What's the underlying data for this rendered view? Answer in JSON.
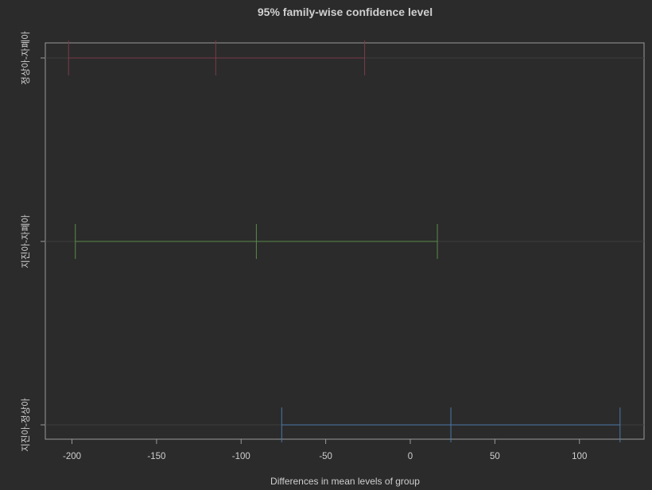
{
  "chart_data": {
    "type": "errorbar",
    "title": "95% family-wise confidence level",
    "xlabel": "Differences in mean levels of group",
    "ylabel": "",
    "xlim": [
      -200,
      125
    ],
    "xticks": [
      -200,
      -150,
      -100,
      -50,
      0,
      50,
      100
    ],
    "xtick_labels": [
      "-200",
      "-150",
      "-100",
      "-50",
      "0",
      "50",
      "100"
    ],
    "grid": "horizontal lines at each comparison",
    "background": "#2b2b2b",
    "comparisons": [
      {
        "label": "정상아-자폐아",
        "lower": -202,
        "estimate": -115,
        "upper": -27,
        "color": "#7a3a4a"
      },
      {
        "label": "지진아-자폐아",
        "lower": -198,
        "estimate": -91,
        "upper": 16,
        "color": "#5a8a4a"
      },
      {
        "label": "지진아-정상아",
        "lower": -76,
        "estimate": 24,
        "upper": 124,
        "color": "#4a78a8"
      }
    ]
  }
}
